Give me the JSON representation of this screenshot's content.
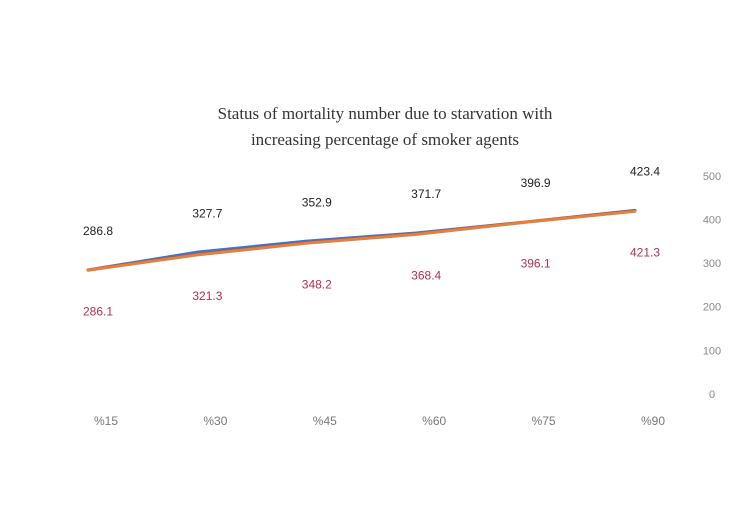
{
  "chart_data": {
    "type": "line",
    "title": [
      "Status of mortality number due to starvation with",
      "increasing percentage of smoker agents"
    ],
    "categories": [
      "%15",
      "%30",
      "%45",
      "%60",
      "%75",
      "%90"
    ],
    "series": [
      {
        "color": "#4472c4",
        "label_color": "#222222",
        "values": [
          286.8,
          327.7,
          352.9,
          371.7,
          396.9,
          423.4
        ]
      },
      {
        "color": "#ed7d31",
        "label_color": "#b0304f",
        "values": [
          286.1,
          321.3,
          348.2,
          368.4,
          396.1,
          421.3
        ]
      }
    ],
    "ylim": [
      0,
      500
    ],
    "yticks": [
      0,
      100,
      200,
      300,
      400,
      500
    ],
    "y_axis_side": "right"
  }
}
